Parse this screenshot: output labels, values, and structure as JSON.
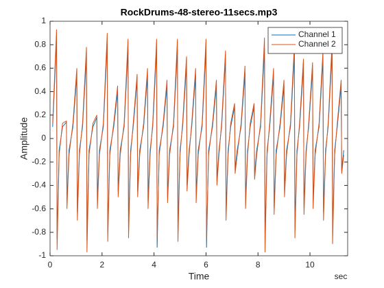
{
  "chart_data": {
    "type": "line",
    "title": "RockDrums-48-stereo-11secs.mp3",
    "x_label": "Time",
    "x_unit": "sec",
    "y_label": "Amplitude",
    "xlim": [
      0,
      11.45
    ],
    "xticks": [
      0,
      2,
      4,
      6,
      8,
      10
    ],
    "ylim": [
      -1,
      1
    ],
    "yticks": [
      -1,
      -0.8,
      -0.6,
      -0.4,
      -0.2,
      0,
      0.2,
      0.4,
      0.6,
      0.8,
      1
    ],
    "grid": false,
    "legend_position": "northeast",
    "x": [
      0.1,
      0.25,
      0.27,
      0.35,
      0.48,
      0.63,
      0.65,
      0.73,
      0.88,
      1.03,
      1.05,
      1.13,
      1.25,
      1.4,
      1.42,
      1.5,
      1.65,
      1.8,
      1.82,
      1.9,
      2.05,
      2.2,
      2.22,
      2.3,
      2.45,
      2.6,
      2.62,
      2.7,
      2.85,
      3.0,
      3.02,
      3.1,
      3.2,
      3.35,
      3.37,
      3.45,
      3.6,
      3.75,
      3.77,
      3.85,
      3.95,
      4.1,
      4.12,
      4.2,
      4.35,
      4.5,
      4.52,
      4.6,
      4.75,
      4.9,
      4.92,
      5.0,
      5.1,
      5.25,
      5.27,
      5.35,
      5.45,
      5.6,
      5.62,
      5.7,
      5.85,
      6.0,
      6.02,
      6.1,
      6.25,
      6.4,
      6.42,
      6.5,
      6.6,
      6.75,
      6.77,
      6.85,
      6.95,
      7.1,
      7.12,
      7.2,
      7.35,
      7.5,
      7.52,
      7.6,
      7.7,
      7.85,
      7.87,
      7.95,
      8.1,
      8.25,
      8.27,
      8.35,
      8.45,
      8.6,
      8.62,
      8.7,
      8.85,
      9.0,
      9.02,
      9.1,
      9.25,
      9.4,
      9.42,
      9.5,
      9.6,
      9.75,
      9.77,
      9.85,
      9.95,
      10.1,
      10.12,
      10.2,
      10.35,
      10.5,
      10.52,
      10.6,
      10.7,
      10.85,
      10.87,
      10.95,
      11.05,
      11.2,
      11.22,
      11.3
    ],
    "series": [
      {
        "name": "Channel 1",
        "color": "#0072BD",
        "values": [
          0.1,
          0.84,
          -0.86,
          -0.1,
          0.1,
          0.14,
          -0.54,
          -0.1,
          0.1,
          0.54,
          -0.63,
          -0.1,
          0.1,
          0.7,
          -0.87,
          -0.1,
          0.1,
          0.18,
          -0.54,
          -0.1,
          0.1,
          0.81,
          -0.79,
          -0.1,
          0.1,
          0.4,
          -0.45,
          -0.1,
          0.1,
          0.76,
          -0.76,
          -0.1,
          0.1,
          0.5,
          -0.45,
          -0.1,
          0.1,
          0.54,
          -0.54,
          -0.1,
          0.1,
          0.76,
          -0.93,
          -0.1,
          0.1,
          0.45,
          -0.5,
          -0.1,
          0.1,
          0.76,
          -0.79,
          -0.1,
          0.1,
          0.63,
          -0.4,
          -0.1,
          0.1,
          0.54,
          -0.5,
          -0.1,
          0.1,
          0.76,
          -0.93,
          -0.1,
          0.1,
          0.45,
          -0.36,
          -0.1,
          0.1,
          0.68,
          -0.63,
          -0.1,
          0.1,
          0.27,
          -0.27,
          -0.1,
          0.1,
          0.56,
          -0.54,
          -0.1,
          0.1,
          0.27,
          -0.32,
          -0.1,
          0.1,
          0.77,
          -0.87,
          -0.1,
          0.1,
          0.54,
          -0.59,
          -0.1,
          0.1,
          0.45,
          -0.45,
          -0.1,
          0.1,
          0.72,
          -0.77,
          -0.1,
          0.1,
          0.61,
          -0.59,
          -0.1,
          0.1,
          0.59,
          -0.54,
          -0.1,
          0.1,
          0.68,
          -0.63,
          -0.1,
          0.1,
          0.74,
          -0.81,
          -0.1,
          0.1,
          0.45,
          -0.27,
          -0.1
        ]
      },
      {
        "name": "Channel 2",
        "color": "#D95319",
        "values": [
          0.13,
          0.93,
          -0.95,
          -0.14,
          0.13,
          0.15,
          -0.6,
          -0.14,
          0.13,
          0.6,
          -0.7,
          -0.14,
          0.13,
          0.78,
          -0.97,
          -0.14,
          0.13,
          0.2,
          -0.6,
          -0.14,
          0.13,
          0.9,
          -0.88,
          -0.14,
          0.13,
          0.45,
          -0.5,
          -0.14,
          0.13,
          0.85,
          -0.85,
          -0.14,
          0.13,
          0.55,
          -0.5,
          -0.14,
          0.13,
          0.6,
          -0.6,
          -0.14,
          0.13,
          0.85,
          -0.85,
          -0.14,
          0.13,
          0.5,
          -0.55,
          -0.14,
          0.13,
          0.85,
          -0.88,
          -0.14,
          0.13,
          0.7,
          -0.45,
          -0.14,
          0.13,
          0.6,
          -0.55,
          -0.14,
          0.13,
          0.85,
          -0.85,
          -0.14,
          0.13,
          0.5,
          -0.4,
          -0.14,
          0.13,
          0.75,
          -0.7,
          -0.14,
          0.13,
          0.3,
          -0.3,
          -0.14,
          0.13,
          0.62,
          -0.6,
          -0.14,
          0.13,
          0.3,
          -0.35,
          -0.14,
          0.13,
          0.86,
          -0.97,
          -0.14,
          0.13,
          0.6,
          -0.65,
          -0.14,
          0.13,
          0.5,
          -0.5,
          -0.14,
          0.13,
          0.8,
          -0.85,
          -0.14,
          0.13,
          0.68,
          -0.65,
          -0.14,
          0.13,
          0.65,
          -0.6,
          -0.14,
          0.13,
          0.75,
          -0.7,
          -0.14,
          0.13,
          0.82,
          -0.9,
          -0.14,
          0.13,
          0.5,
          -0.3,
          -0.14
        ]
      }
    ]
  }
}
